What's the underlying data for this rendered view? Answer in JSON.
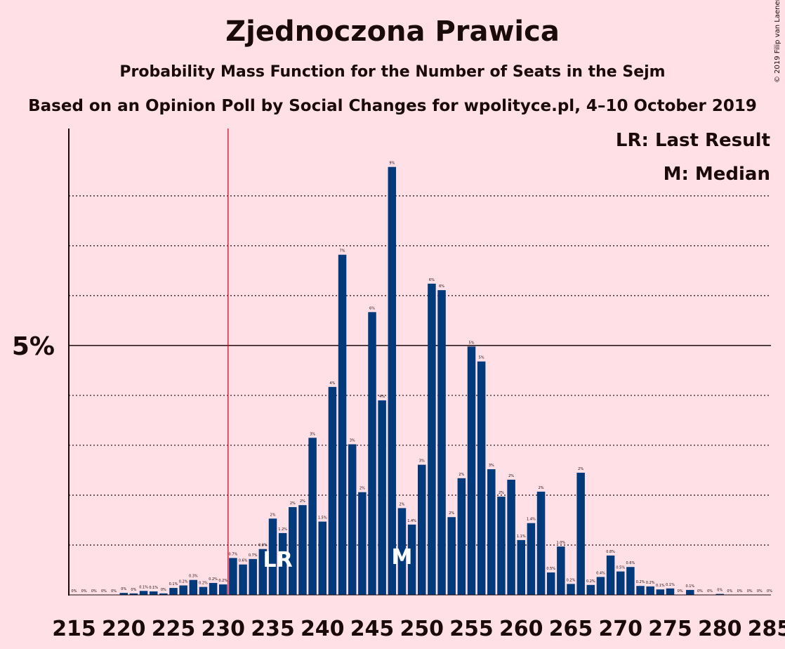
{
  "header": {
    "title": "Zjednoczona Prawica",
    "subtitle": "Probability Mass Function for the Number of Seats in the Sejm",
    "subtitle2": "Based on an Opinion Poll by Social Changes for wpolityce.pl, 4–10 October 2019",
    "copyright": "© 2019 Filip van Laenen"
  },
  "colors": {
    "background": "#ffe0e6",
    "bar": "#003a7a",
    "last_result_line": "#e8002b",
    "text": "#1a0a0a"
  },
  "chart_data": {
    "type": "bar",
    "x": [
      215,
      216,
      217,
      218,
      219,
      220,
      221,
      222,
      223,
      224,
      225,
      226,
      227,
      228,
      229,
      230,
      231,
      232,
      233,
      234,
      235,
      236,
      237,
      238,
      239,
      240,
      241,
      242,
      243,
      244,
      245,
      246,
      247,
      248,
      249,
      250,
      251,
      252,
      253,
      254,
      255,
      256,
      257,
      258,
      259,
      260,
      261,
      262,
      263,
      264,
      265,
      266,
      267,
      268,
      269,
      270,
      271,
      272,
      273,
      274,
      275,
      276,
      277,
      278,
      279,
      280,
      281,
      282,
      283,
      284,
      285
    ],
    "values": [
      0,
      0,
      0,
      0,
      0,
      0.04,
      0.03,
      0.08,
      0.07,
      0.03,
      0.14,
      0.19,
      0.3,
      0.16,
      0.24,
      0.21,
      0.74,
      0.61,
      0.72,
      0.92,
      1.53,
      1.24,
      1.76,
      1.8,
      3.15,
      1.47,
      4.17,
      6.82,
      3.02,
      2.06,
      5.67,
      3.9,
      8.58,
      1.74,
      1.41,
      2.61,
      6.24,
      6.11,
      1.56,
      2.34,
      4.98,
      4.68,
      2.52,
      1.97,
      2.31,
      1.1,
      1.44,
      2.07,
      0.45,
      0.97,
      0.22,
      2.45,
      0.2,
      0.36,
      0.79,
      0.47,
      0.56,
      0.18,
      0.17,
      0.11,
      0.13,
      0,
      0.1,
      0,
      0,
      0.02,
      0,
      0,
      0,
      0,
      0
    ],
    "bar_labels": [
      "0%",
      "0%",
      "0%",
      "0%",
      "0%",
      "0%",
      "0%",
      "0.1%",
      "0.1%",
      "0%",
      "0.1%",
      "0.2%",
      "0.3%",
      "0.2%",
      "0.2%",
      "0.2%",
      "0.7%",
      "0.6%",
      "0.7%",
      "0.9%",
      "2%",
      "1.2%",
      "2%",
      "2%",
      "3%",
      "1.5%",
      "4%",
      "7%",
      "3%",
      "2%",
      "6%",
      "4%",
      "9%",
      "2%",
      "1.4%",
      "3%",
      "6%",
      "6%",
      "2%",
      "2%",
      "5%",
      "5%",
      "3%",
      "2%",
      "2%",
      "1.1%",
      "1.4%",
      "2%",
      "0.5%",
      "1.0%",
      "0.2%",
      "2%",
      "0.2%",
      "0.4%",
      "0.8%",
      "0.5%",
      "0.6%",
      "0.2%",
      "0.2%",
      "0.1%",
      "0.1%",
      "0%",
      "0.1%",
      "0%",
      "0%",
      "0%",
      "0%",
      "0%",
      "0%",
      "0%",
      "0%"
    ],
    "x_ticks": [
      215,
      220,
      225,
      230,
      235,
      240,
      245,
      250,
      255,
      260,
      265,
      270,
      275,
      280,
      285
    ],
    "y_tick_label": "5%",
    "y_major": 5,
    "y_gridlines": [
      1,
      2,
      3,
      4,
      6,
      7,
      8
    ],
    "ylim": [
      0,
      9.35
    ],
    "last_result": 231,
    "last_result_label": "LR",
    "median": 248,
    "median_label": "M",
    "legend": [
      "LR: Last Result",
      "M: Median"
    ]
  }
}
